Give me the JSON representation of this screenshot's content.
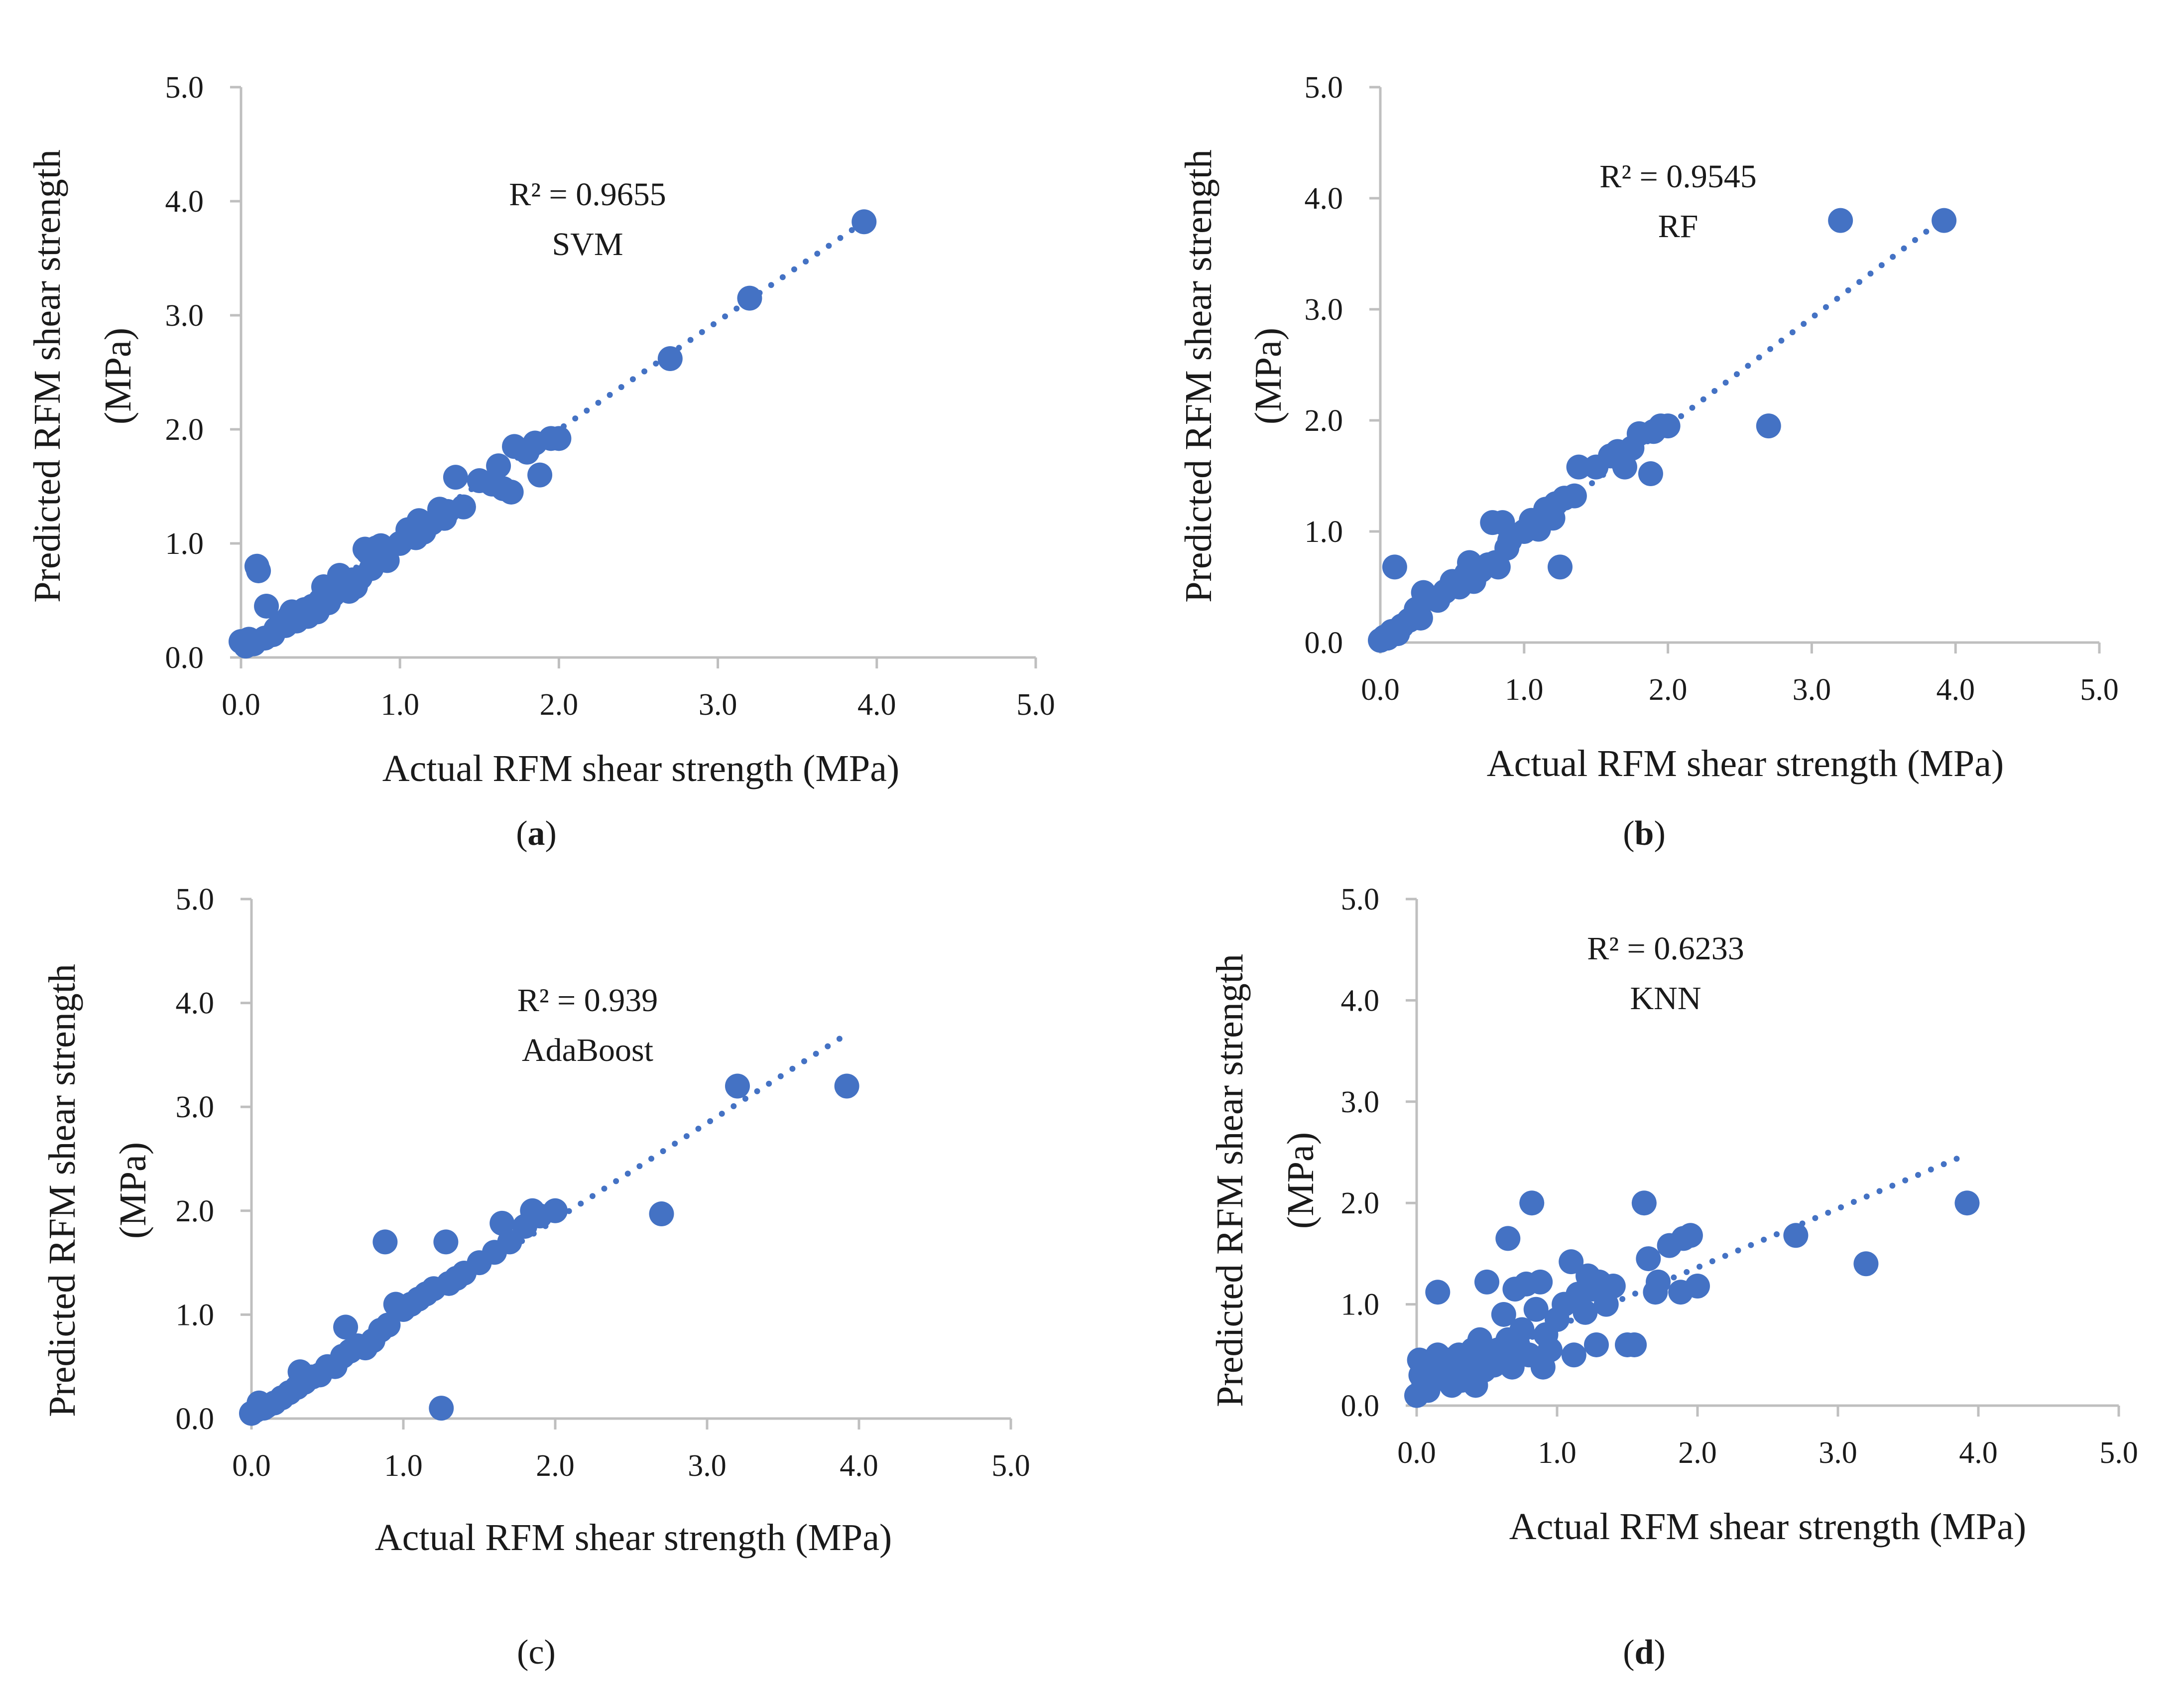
{
  "chart_data": [
    {
      "type": "scatter",
      "panel_label": "a",
      "model": "SVM",
      "r2_text": "R² = 0.9655",
      "xlabel": "Actual RFM shear strength (MPa)",
      "ylabel_line1": "Predicted RFM shear strength",
      "ylabel_line2": "(MPa)",
      "xlim": [
        0,
        5
      ],
      "ylim": [
        0,
        5
      ],
      "ticks": [
        "0.0",
        "1.0",
        "2.0",
        "3.0",
        "4.0",
        "5.0"
      ],
      "marker_color": "#4472C4",
      "trendline": {
        "x_start": 0.0,
        "x_end": 3.92,
        "y_start": 0.1,
        "y_end": 3.82
      },
      "points": [
        [
          0.0,
          0.14
        ],
        [
          0.03,
          0.1
        ],
        [
          0.05,
          0.16
        ],
        [
          0.08,
          0.12
        ],
        [
          0.1,
          0.8
        ],
        [
          0.11,
          0.76
        ],
        [
          0.15,
          0.17
        ],
        [
          0.16,
          0.45
        ],
        [
          0.2,
          0.2
        ],
        [
          0.22,
          0.25
        ],
        [
          0.25,
          0.3
        ],
        [
          0.28,
          0.28
        ],
        [
          0.3,
          0.35
        ],
        [
          0.32,
          0.4
        ],
        [
          0.35,
          0.32
        ],
        [
          0.38,
          0.38
        ],
        [
          0.4,
          0.42
        ],
        [
          0.42,
          0.36
        ],
        [
          0.45,
          0.45
        ],
        [
          0.48,
          0.4
        ],
        [
          0.5,
          0.5
        ],
        [
          0.52,
          0.62
        ],
        [
          0.55,
          0.48
        ],
        [
          0.58,
          0.55
        ],
        [
          0.6,
          0.65
        ],
        [
          0.62,
          0.72
        ],
        [
          0.65,
          0.6
        ],
        [
          0.68,
          0.58
        ],
        [
          0.7,
          0.68
        ],
        [
          0.72,
          0.62
        ],
        [
          0.75,
          0.7
        ],
        [
          0.78,
          0.95
        ],
        [
          0.8,
          0.92
        ],
        [
          0.82,
          0.78
        ],
        [
          0.85,
          0.96
        ],
        [
          0.88,
          0.98
        ],
        [
          0.9,
          0.88
        ],
        [
          0.92,
          0.85
        ],
        [
          1.0,
          1.0
        ],
        [
          1.05,
          1.12
        ],
        [
          1.1,
          1.05
        ],
        [
          1.12,
          1.2
        ],
        [
          1.15,
          1.1
        ],
        [
          1.2,
          1.18
        ],
        [
          1.25,
          1.3
        ],
        [
          1.28,
          1.22
        ],
        [
          1.3,
          1.28
        ],
        [
          1.35,
          1.58
        ],
        [
          1.4,
          1.32
        ],
        [
          1.5,
          1.55
        ],
        [
          1.58,
          1.52
        ],
        [
          1.62,
          1.68
        ],
        [
          1.65,
          1.48
        ],
        [
          1.7,
          1.45
        ],
        [
          1.72,
          1.85
        ],
        [
          1.8,
          1.8
        ],
        [
          1.85,
          1.88
        ],
        [
          1.88,
          1.6
        ],
        [
          1.95,
          1.92
        ],
        [
          2.0,
          1.92
        ],
        [
          2.7,
          2.62
        ],
        [
          3.2,
          3.15
        ],
        [
          3.92,
          3.82
        ]
      ]
    },
    {
      "type": "scatter",
      "panel_label": "b",
      "model": "RF",
      "r2_text": "R² = 0.9545",
      "xlabel": "Actual RFM shear strength (MPa)",
      "ylabel_line1": "Predicted RFM shear strength",
      "ylabel_line2": "(MPa)",
      "xlim": [
        0,
        5
      ],
      "ylim": [
        0,
        5
      ],
      "ticks": [
        "0.0",
        "1.0",
        "2.0",
        "3.0",
        "4.0",
        "5.0"
      ],
      "marker_color": "#4472C4",
      "trendline": {
        "x_start": 0.0,
        "x_end": 3.92,
        "y_start": 0.0,
        "y_end": 3.82
      },
      "points": [
        [
          0.0,
          0.02
        ],
        [
          0.03,
          0.05
        ],
        [
          0.05,
          0.04
        ],
        [
          0.08,
          0.1
        ],
        [
          0.1,
          0.68
        ],
        [
          0.12,
          0.08
        ],
        [
          0.15,
          0.15
        ],
        [
          0.2,
          0.2
        ],
        [
          0.25,
          0.3
        ],
        [
          0.28,
          0.22
        ],
        [
          0.3,
          0.45
        ],
        [
          0.35,
          0.4
        ],
        [
          0.4,
          0.38
        ],
        [
          0.45,
          0.46
        ],
        [
          0.5,
          0.55
        ],
        [
          0.55,
          0.5
        ],
        [
          0.6,
          0.62
        ],
        [
          0.62,
          0.72
        ],
        [
          0.65,
          0.55
        ],
        [
          0.7,
          0.65
        ],
        [
          0.75,
          0.7
        ],
        [
          0.78,
          1.08
        ],
        [
          0.8,
          0.72
        ],
        [
          0.82,
          0.68
        ],
        [
          0.85,
          1.08
        ],
        [
          0.88,
          0.85
        ],
        [
          0.9,
          0.92
        ],
        [
          1.0,
          1.0
        ],
        [
          1.05,
          1.1
        ],
        [
          1.1,
          1.02
        ],
        [
          1.15,
          1.2
        ],
        [
          1.2,
          1.12
        ],
        [
          1.22,
          1.25
        ],
        [
          1.25,
          0.68
        ],
        [
          1.28,
          1.3
        ],
        [
          1.35,
          1.32
        ],
        [
          1.38,
          1.58
        ],
        [
          1.5,
          1.58
        ],
        [
          1.6,
          1.68
        ],
        [
          1.65,
          1.72
        ],
        [
          1.7,
          1.58
        ],
        [
          1.75,
          1.75
        ],
        [
          1.8,
          1.88
        ],
        [
          1.88,
          1.52
        ],
        [
          1.9,
          1.9
        ],
        [
          1.95,
          1.95
        ],
        [
          2.0,
          1.95
        ],
        [
          2.7,
          1.95
        ],
        [
          3.2,
          3.8
        ],
        [
          3.92,
          3.8
        ]
      ]
    },
    {
      "type": "scatter",
      "panel_label": "c",
      "model": "AdaBoost",
      "r2_text": "R² = 0.939",
      "xlabel": "Actual RFM shear strength (MPa)",
      "ylabel_line1": "Predicted RFM shear strength",
      "ylabel_line2": "(MPa)",
      "xlim": [
        0,
        5
      ],
      "ylim": [
        0,
        5
      ],
      "ticks": [
        "0.0",
        "1.0",
        "2.0",
        "3.0",
        "4.0",
        "5.0"
      ],
      "marker_color": "#4472C4",
      "trendline": {
        "x_start": 0.0,
        "x_end": 3.92,
        "y_start": 0.05,
        "y_end": 3.7
      },
      "points": [
        [
          0.0,
          0.05
        ],
        [
          0.03,
          0.08
        ],
        [
          0.05,
          0.15
        ],
        [
          0.08,
          0.1
        ],
        [
          0.1,
          0.12
        ],
        [
          0.15,
          0.15
        ],
        [
          0.2,
          0.2
        ],
        [
          0.25,
          0.25
        ],
        [
          0.3,
          0.3
        ],
        [
          0.32,
          0.45
        ],
        [
          0.35,
          0.35
        ],
        [
          0.4,
          0.4
        ],
        [
          0.45,
          0.42
        ],
        [
          0.5,
          0.5
        ],
        [
          0.55,
          0.5
        ],
        [
          0.6,
          0.6
        ],
        [
          0.62,
          0.88
        ],
        [
          0.65,
          0.65
        ],
        [
          0.7,
          0.7
        ],
        [
          0.75,
          0.68
        ],
        [
          0.8,
          0.75
        ],
        [
          0.85,
          0.85
        ],
        [
          0.88,
          1.7
        ],
        [
          0.9,
          0.9
        ],
        [
          0.95,
          1.1
        ],
        [
          1.0,
          1.05
        ],
        [
          1.05,
          1.1
        ],
        [
          1.1,
          1.15
        ],
        [
          1.15,
          1.2
        ],
        [
          1.2,
          1.25
        ],
        [
          1.25,
          0.1
        ],
        [
          1.28,
          1.7
        ],
        [
          1.3,
          1.3
        ],
        [
          1.35,
          1.35
        ],
        [
          1.4,
          1.4
        ],
        [
          1.5,
          1.5
        ],
        [
          1.6,
          1.6
        ],
        [
          1.65,
          1.88
        ],
        [
          1.7,
          1.7
        ],
        [
          1.8,
          1.85
        ],
        [
          1.85,
          2.0
        ],
        [
          1.9,
          1.95
        ],
        [
          2.0,
          2.0
        ],
        [
          2.7,
          1.97
        ],
        [
          3.2,
          3.2
        ],
        [
          3.92,
          3.2
        ]
      ]
    },
    {
      "type": "scatter",
      "panel_label": "d",
      "model": "KNN",
      "r2_text": "R² = 0.6233",
      "xlabel": "Actual RFM shear strength (MPa)",
      "ylabel_line1": "Predicted RFM shear strength",
      "ylabel_line2": "(MPa)",
      "xlim": [
        0,
        5
      ],
      "ylim": [
        0,
        5
      ],
      "ticks": [
        "0.0",
        "1.0",
        "2.0",
        "3.0",
        "4.0",
        "5.0"
      ],
      "marker_color": "#4472C4",
      "trendline": {
        "x_start": 0.0,
        "x_end": 3.92,
        "y_start": 0.2,
        "y_end": 2.48
      },
      "points": [
        [
          0.0,
          0.1
        ],
        [
          0.02,
          0.45
        ],
        [
          0.03,
          0.3
        ],
        [
          0.05,
          0.2
        ],
        [
          0.08,
          0.15
        ],
        [
          0.1,
          0.35
        ],
        [
          0.12,
          0.25
        ],
        [
          0.15,
          1.12
        ],
        [
          0.15,
          0.5
        ],
        [
          0.18,
          0.4
        ],
        [
          0.2,
          0.3
        ],
        [
          0.22,
          0.45
        ],
        [
          0.25,
          0.2
        ],
        [
          0.28,
          0.35
        ],
        [
          0.3,
          0.5
        ],
        [
          0.32,
          0.25
        ],
        [
          0.35,
          0.4
        ],
        [
          0.38,
          0.3
        ],
        [
          0.4,
          0.55
        ],
        [
          0.42,
          0.2
        ],
        [
          0.45,
          0.65
        ],
        [
          0.48,
          0.35
        ],
        [
          0.5,
          1.22
        ],
        [
          0.52,
          0.5
        ],
        [
          0.55,
          0.4
        ],
        [
          0.58,
          0.55
        ],
        [
          0.6,
          0.45
        ],
        [
          0.62,
          0.9
        ],
        [
          0.65,
          1.65
        ],
        [
          0.65,
          0.65
        ],
        [
          0.68,
          0.38
        ],
        [
          0.7,
          1.15
        ],
        [
          0.72,
          0.6
        ],
        [
          0.75,
          0.75
        ],
        [
          0.78,
          1.2
        ],
        [
          0.8,
          0.5
        ],
        [
          0.82,
          2.0
        ],
        [
          0.85,
          0.95
        ],
        [
          0.88,
          1.22
        ],
        [
          0.9,
          0.38
        ],
        [
          0.92,
          0.7
        ],
        [
          0.95,
          0.55
        ],
        [
          1.0,
          0.85
        ],
        [
          1.05,
          1.0
        ],
        [
          1.1,
          1.42
        ],
        [
          1.12,
          0.5
        ],
        [
          1.15,
          1.1
        ],
        [
          1.2,
          0.92
        ],
        [
          1.22,
          1.28
        ],
        [
          1.25,
          1.15
        ],
        [
          1.28,
          0.6
        ],
        [
          1.3,
          1.22
        ],
        [
          1.35,
          1.0
        ],
        [
          1.4,
          1.18
        ],
        [
          1.5,
          0.6
        ],
        [
          1.55,
          0.6
        ],
        [
          1.62,
          2.0
        ],
        [
          1.65,
          1.45
        ],
        [
          1.7,
          1.12
        ],
        [
          1.72,
          1.22
        ],
        [
          1.8,
          1.58
        ],
        [
          1.88,
          1.12
        ],
        [
          1.9,
          1.65
        ],
        [
          1.95,
          1.68
        ],
        [
          2.0,
          1.18
        ],
        [
          2.7,
          1.68
        ],
        [
          3.2,
          1.4
        ],
        [
          3.92,
          2.0
        ]
      ]
    }
  ]
}
